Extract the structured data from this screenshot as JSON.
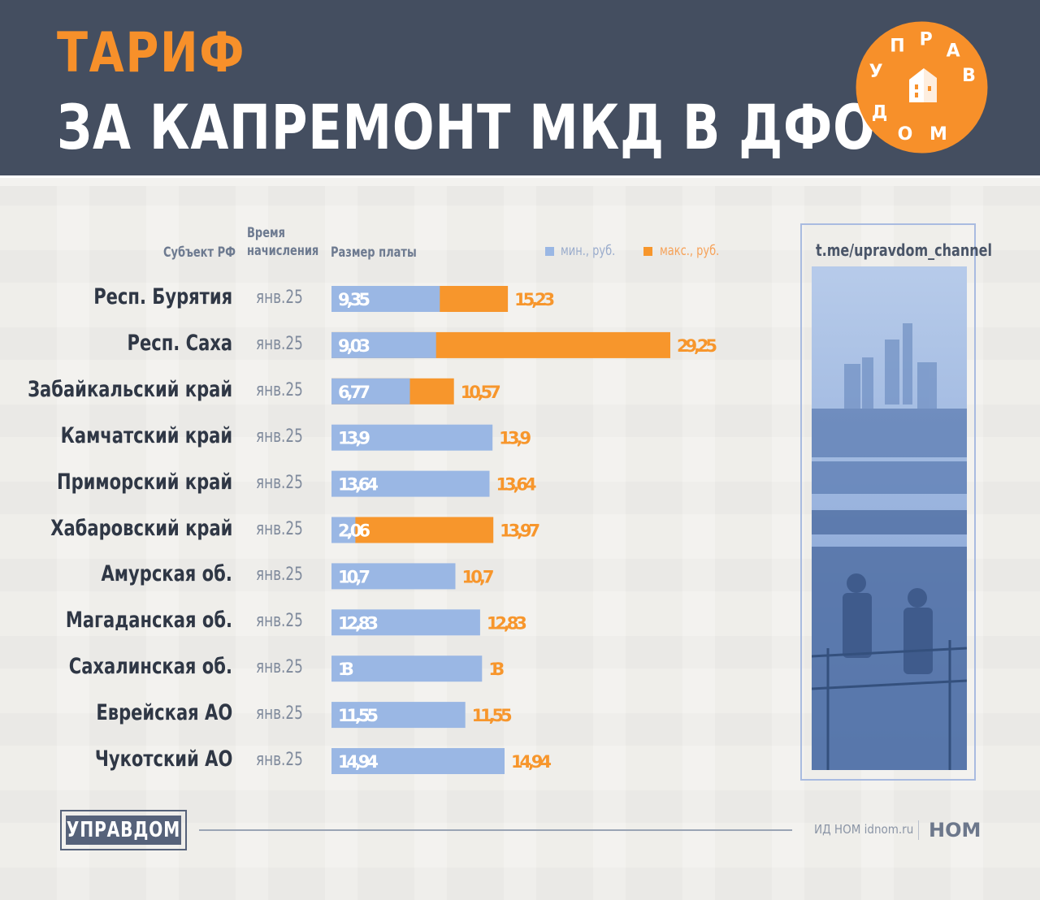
{
  "header": {
    "title_line1": "ТАРИФ",
    "title_line2": "ЗА КАПРЕМОНТ МКД В ДФО",
    "logo_letters": [
      "У",
      "П",
      "Р",
      "А",
      "В",
      "Д",
      "О",
      "М"
    ]
  },
  "columns": {
    "subject": "Субъект РФ",
    "period": "Время начисления",
    "size": "Размер платы"
  },
  "legend": {
    "min": "мин., руб.",
    "max": "макс., руб.",
    "min_color": "#9ab7e4",
    "max_color": "#f7962c"
  },
  "channel": "t.me/upravdom_channel",
  "footer": {
    "brand": "УПРАВДОМ",
    "source": "ИД НОМ idnom.ru",
    "logo": "НОМ"
  },
  "chart_data": {
    "type": "bar",
    "orientation": "horizontal",
    "stacked_overlay": true,
    "categories": [
      "Респ. Бурятия",
      "Респ. Саха",
      "Забайкальский край",
      "Камчатский край",
      "Приморский край",
      "Хабаровский край",
      "Амурская об.",
      "Магаданская об.",
      "Сахалинская об.",
      "Еврейская АО",
      "Чукотский АО"
    ],
    "period": [
      "янв.25",
      "янв.25",
      "янв.25",
      "янв.25",
      "янв.25",
      "янв.25",
      "янв.25",
      "янв.25",
      "янв.25",
      "янв.25",
      "янв.25"
    ],
    "series": [
      {
        "name": "мин., руб.",
        "values": [
          9.35,
          9.03,
          6.77,
          13.9,
          13.64,
          2.06,
          10.7,
          12.83,
          13,
          11.55,
          14.94
        ],
        "labels": [
          "9,35",
          "9,03",
          "6,77",
          "13,9",
          "13,64",
          "2,06",
          "10,7",
          "12,83",
          "13",
          "11,55",
          "14,94"
        ]
      },
      {
        "name": "макс., руб.",
        "values": [
          15.23,
          29.25,
          10.57,
          13.9,
          13.64,
          13.97,
          10.7,
          12.83,
          13,
          11.55,
          14.94
        ],
        "labels": [
          "15,23",
          "29,25",
          "10,57",
          "13,9",
          "13,64",
          "13,97",
          "10,7",
          "12,83",
          "13",
          "11,55",
          "14,94"
        ]
      }
    ],
    "xlim": [
      0,
      29.25
    ]
  }
}
